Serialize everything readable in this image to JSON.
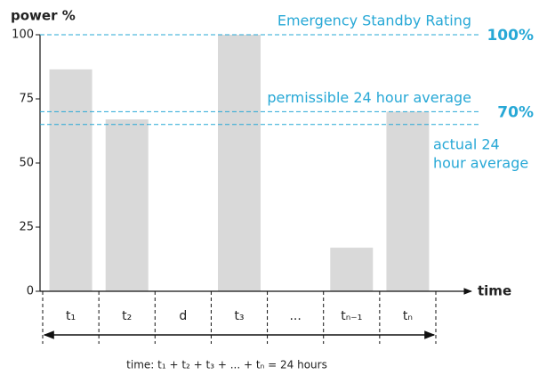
{
  "chart_data": {
    "type": "bar",
    "y_label": "power %",
    "x_label": "time",
    "categories": [
      "t₁",
      "t₂",
      "d",
      "t₃",
      "...",
      "tₙ₋₁",
      "tₙ"
    ],
    "values": [
      86.5,
      67,
      null,
      100,
      null,
      17,
      70
    ],
    "color": "#d9d9d9",
    "ylim": [
      0,
      100
    ],
    "yticks": [
      0,
      25,
      50,
      75,
      100
    ],
    "reference_lines": [
      {
        "value": 100,
        "label": [
          "Emergency Standby Rating"
        ],
        "value_label": "100%"
      },
      {
        "value": 70,
        "label": [
          "permissible 24 hour average"
        ],
        "value_label": "70%"
      },
      {
        "value": 65,
        "label": [
          "actual 24",
          "hour average"
        ]
      }
    ],
    "reference_color": "#27a8d6",
    "caption": "time: t₁ + t₂ + t₃ + ... + tₙ = 24 hours"
  }
}
